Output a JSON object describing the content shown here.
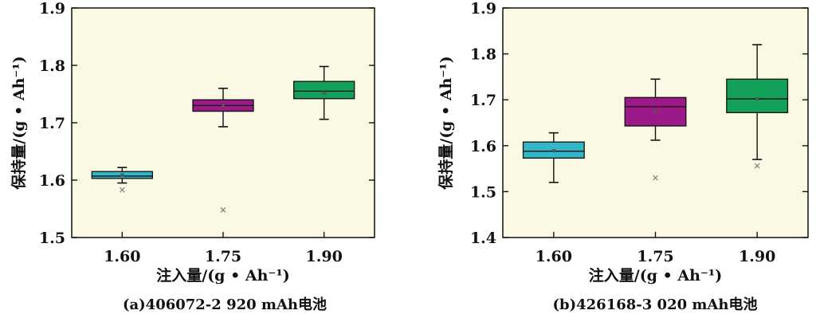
{
  "chart_data": [
    {
      "type": "box",
      "caption": "(a)406072-2 920 mAh电池",
      "xlabel": "注入量/(g • Ah⁻¹)",
      "ylabel": "保持量/(g • Ah⁻¹)",
      "ylim": [
        1.5,
        1.9
      ],
      "yticks": [
        "1.5",
        "1.6",
        "1.7",
        "1.8",
        "1.9"
      ],
      "categories": [
        "1.60",
        "1.75",
        "1.90"
      ],
      "background": "#fbf8e3",
      "boxes": [
        {
          "category": "1.60",
          "color": "#33b6c8",
          "whisker_low": 1.595,
          "q1": 1.603,
          "median": 1.607,
          "mean": 1.609,
          "q3": 1.615,
          "whisker_high": 1.622,
          "outliers": [
            1.583
          ]
        },
        {
          "category": "1.75",
          "color": "#9b1a88",
          "whisker_low": 1.693,
          "q1": 1.72,
          "median": 1.73,
          "mean": 1.729,
          "q3": 1.74,
          "whisker_high": 1.76,
          "outliers": [
            1.548
          ]
        },
        {
          "category": "1.90",
          "color": "#12a05a",
          "whisker_low": 1.706,
          "q1": 1.742,
          "median": 1.755,
          "mean": 1.752,
          "q3": 1.772,
          "whisker_high": 1.798,
          "outliers": []
        }
      ]
    },
    {
      "type": "box",
      "caption": "(b)426168-3 020 mAh电池",
      "xlabel": "注入量/(g • Ah⁻¹)",
      "ylabel": "保持量/(g • Ah⁻¹)",
      "ylim": [
        1.4,
        1.9
      ],
      "yticks": [
        "1.4",
        "1.5",
        "1.6",
        "1.7",
        "1.8",
        "1.9"
      ],
      "categories": [
        "1.60",
        "1.75",
        "1.90"
      ],
      "background": "#fbf8e3",
      "boxes": [
        {
          "category": "1.60",
          "color": "#33b6c8",
          "whisker_low": 1.52,
          "q1": 1.573,
          "median": 1.588,
          "mean": 1.589,
          "q3": 1.608,
          "whisker_high": 1.628,
          "outliers": []
        },
        {
          "category": "1.75",
          "color": "#9b1a88",
          "whisker_low": 1.612,
          "q1": 1.643,
          "median": 1.685,
          "mean": 1.675,
          "q3": 1.705,
          "whisker_high": 1.745,
          "outliers": [
            1.53
          ]
        },
        {
          "category": "1.90",
          "color": "#12a05a",
          "whisker_low": 1.57,
          "q1": 1.672,
          "median": 1.702,
          "mean": 1.702,
          "q3": 1.745,
          "whisker_high": 1.82,
          "outliers": [
            1.556
          ]
        }
      ]
    }
  ]
}
